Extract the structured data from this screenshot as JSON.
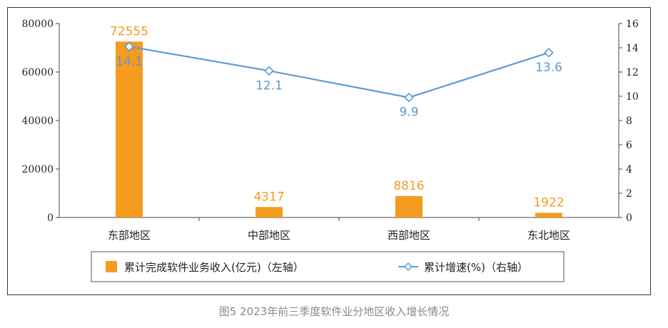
{
  "chart_data": {
    "type": "bar",
    "categories": [
      "东部地区",
      "中部地区",
      "西部地区",
      "东北地区"
    ],
    "series": [
      {
        "name": "累计完成软件业务收入(亿元)（左轴）",
        "type": "bar",
        "axis": "left",
        "values": [
          72555,
          4317,
          8816,
          1922
        ],
        "labels": [
          "72555",
          "4317",
          "8816",
          "1922"
        ],
        "color": "#f59b1f"
      },
      {
        "name": "累计增速(%)（右轴）",
        "type": "line",
        "axis": "right",
        "values": [
          14.1,
          12.1,
          9.9,
          13.6
        ],
        "labels": [
          "14.1",
          "12.1",
          "9.9",
          "13.6"
        ],
        "color": "#5b9bd5"
      }
    ],
    "y_left": {
      "min": 0,
      "max": 80000,
      "ticks": [
        "0",
        "20000",
        "40000",
        "60000",
        "80000"
      ]
    },
    "y_right": {
      "min": 0,
      "max": 16,
      "ticks": [
        "0",
        "2",
        "4",
        "6",
        "8",
        "10",
        "12",
        "14",
        "16"
      ]
    },
    "legend_position": "bottom",
    "grid": false
  },
  "caption": "图5  2023年前三季度软件业分地区收入增长情况"
}
